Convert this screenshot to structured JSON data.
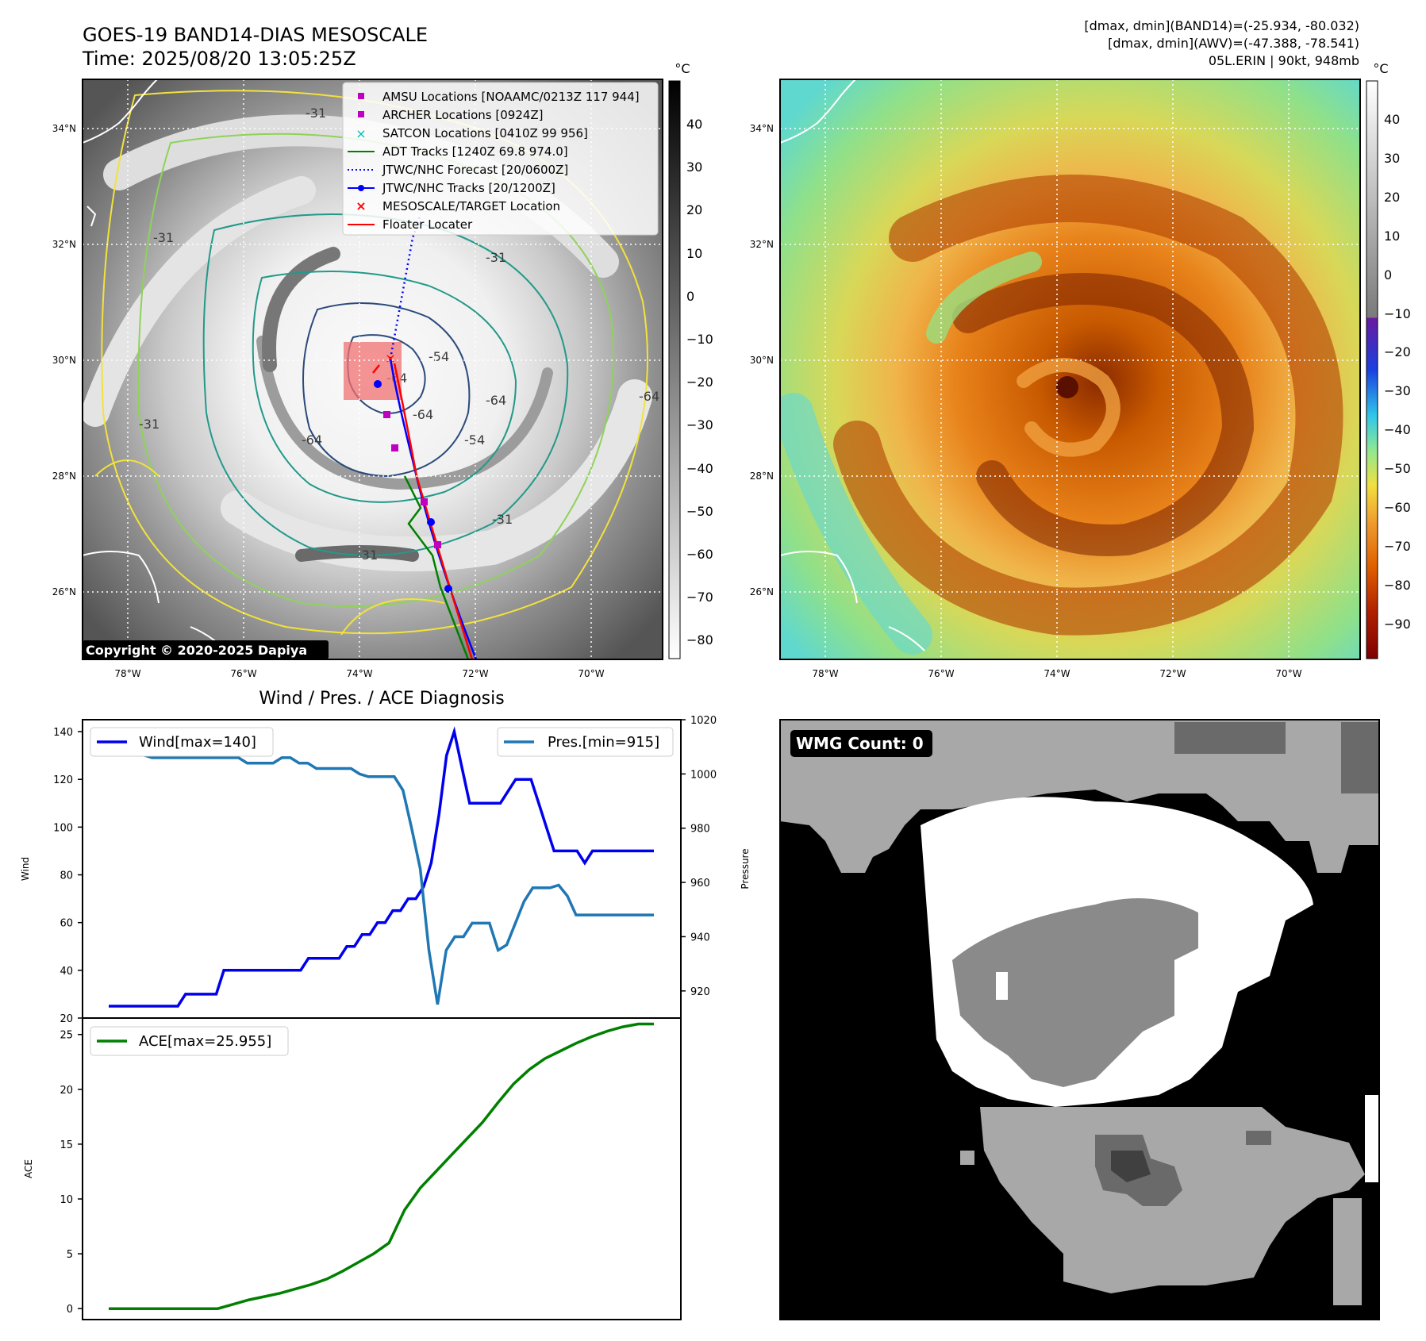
{
  "header": {
    "title": "GOES-19 BAND14-DIAS MESOSCALE",
    "time": "Time: 2025/08/20 13:05:25Z",
    "dmax_band14": "[dmax, dmin](BAND14)=(-25.934, -80.032)",
    "dmax_awv": "[dmax, dmin](AWV)=(-47.388, -78.541)",
    "storm": "05L.ERIN | 90kt, 948mb"
  },
  "map": {
    "lat_labels": [
      "34°N",
      "32°N",
      "30°N",
      "28°N",
      "26°N"
    ],
    "lon_labels": [
      "78°W",
      "76°W",
      "74°W",
      "72°W",
      "70°W"
    ],
    "copyright": "Copyright © 2020-2025 Dapiya",
    "contour_labels": [
      "-31",
      "-31",
      "-31",
      "-31",
      "-31",
      "-54",
      "-64",
      "-64",
      "-64",
      "-64",
      "-64",
      "-54",
      "-31"
    ],
    "colors": {
      "contour_yellow": "#f2e23c",
      "contour_lightgreen": "#8fd25a",
      "contour_teal": "#22998a",
      "contour_navy": "#2b4a7a",
      "mesoscale_box": "#f07070"
    },
    "legend": [
      {
        "label": "AMSU Locations [NOAAMC/0213Z 117 944]",
        "marker": "square",
        "color": "#c000c0"
      },
      {
        "label": "ARCHER Locations [0924Z]",
        "marker": "square",
        "color": "#c000c0"
      },
      {
        "label": "SATCON Locations [0410Z 99 956]",
        "marker": "x",
        "color": "#00bbbb"
      },
      {
        "label": "ADT Tracks [1240Z 69.8 974.0]",
        "marker": "line",
        "color": "#008000"
      },
      {
        "label": "JTWC/NHC Forecast [20/0600Z]",
        "marker": "dotted",
        "color": "#0000ff"
      },
      {
        "label": "JTWC/NHC Tracks [20/1200Z]",
        "marker": "line-dot",
        "color": "#0000ff"
      },
      {
        "label": "MESOSCALE/TARGET Location",
        "marker": "x",
        "color": "#ff0000"
      },
      {
        "label": "Floater Locater",
        "marker": "line",
        "color": "#ff0000"
      }
    ]
  },
  "colorbar_ir": {
    "unit": "°C",
    "ticks": [
      "40",
      "30",
      "20",
      "10",
      "0",
      "−10",
      "−20",
      "−30",
      "−40",
      "−50",
      "−60",
      "−70",
      "−80"
    ]
  },
  "colorbar_wv": {
    "unit": "°C",
    "ticks": [
      "40",
      "30",
      "20",
      "10",
      "0",
      "−10",
      "−20",
      "−30",
      "−40",
      "−50",
      "−60",
      "−70",
      "−80",
      "−90"
    ]
  },
  "diagnosis": {
    "title": "Wind / Pres. / ACE Diagnosis",
    "wind_ylabel": "Wind",
    "pres_ylabel": "Pressure",
    "ace_ylabel": "ACE",
    "wind_legend": "Wind[max=140]",
    "pres_legend": "Pres.[min=915]",
    "ace_legend": "ACE[max=25.955]",
    "colors": {
      "wind": "#0000ee",
      "pres": "#1f77b4",
      "ace": "#008000"
    }
  },
  "wmg": {
    "label": "WMG Count: 0"
  },
  "chart_data": [
    {
      "type": "line",
      "name": "wind",
      "ylim": [
        20,
        145
      ],
      "yticks": [
        20,
        40,
        60,
        80,
        100,
        120,
        140
      ],
      "x": [
        0,
        1,
        2,
        3,
        4,
        5,
        6,
        7,
        8,
        9,
        10,
        11,
        12,
        13,
        14,
        15,
        16,
        17,
        18,
        19,
        20,
        21,
        22,
        23,
        24,
        25,
        26,
        27,
        28,
        29,
        30,
        31,
        32,
        33,
        34,
        35,
        36,
        37,
        38,
        39,
        40,
        41,
        42,
        43,
        44,
        45,
        46,
        47,
        48,
        49,
        50,
        51,
        52,
        53,
        54,
        55,
        56,
        57,
        58,
        59,
        60,
        61,
        62,
        63,
        64,
        65,
        66,
        67,
        68,
        69,
        70,
        71
      ],
      "series": [
        {
          "name": "Wind[max=140]",
          "values": [
            25,
            25,
            25,
            25,
            25,
            25,
            25,
            25,
            25,
            25,
            30,
            30,
            30,
            30,
            30,
            40,
            40,
            40,
            40,
            40,
            40,
            40,
            40,
            40,
            40,
            40,
            45,
            45,
            45,
            45,
            45,
            50,
            50,
            55,
            55,
            60,
            60,
            65,
            65,
            70,
            70,
            75,
            85,
            105,
            130,
            140,
            125,
            110,
            110,
            110,
            110,
            110,
            115,
            120,
            120,
            120,
            110,
            100,
            90,
            90,
            90,
            90,
            85,
            90,
            90,
            90,
            90,
            90,
            90,
            90,
            90,
            90
          ]
        }
      ]
    },
    {
      "type": "line",
      "name": "pressure",
      "ylim": [
        910,
        1020
      ],
      "yticks": [
        920,
        940,
        960,
        980,
        1000,
        1020
      ],
      "x": [
        0,
        1,
        2,
        3,
        4,
        5,
        6,
        7,
        8,
        9,
        10,
        11,
        12,
        13,
        14,
        15,
        16,
        17,
        18,
        19,
        20,
        21,
        22,
        23,
        24,
        25,
        26,
        27,
        28,
        29,
        30,
        31,
        32,
        33,
        34,
        35,
        36,
        37,
        38,
        39,
        40,
        41,
        42,
        43,
        44,
        45,
        46,
        47,
        48,
        49,
        50,
        51,
        52,
        53,
        54,
        55,
        56,
        57,
        58,
        59,
        60,
        61,
        62,
        63
      ],
      "series": [
        {
          "name": "Pres.[min=915]",
          "values": [
            1015,
            1015,
            1015,
            1008,
            1007,
            1006,
            1006,
            1006,
            1006,
            1006,
            1006,
            1006,
            1006,
            1006,
            1006,
            1006,
            1004,
            1004,
            1004,
            1004,
            1006,
            1006,
            1004,
            1004,
            1002,
            1002,
            1002,
            1002,
            1002,
            1000,
            999,
            999,
            999,
            999,
            994,
            980,
            965,
            935,
            915,
            935,
            940,
            940,
            945,
            945,
            945,
            935,
            937,
            945,
            953,
            958,
            958,
            958,
            959,
            955,
            948,
            948,
            948,
            948,
            948,
            948,
            948,
            948,
            948,
            948
          ]
        }
      ]
    },
    {
      "type": "line",
      "name": "ace",
      "ylim": [
        -1,
        26.5
      ],
      "yticks": [
        0,
        5,
        10,
        15,
        20,
        25
      ],
      "x": [
        0,
        1,
        2,
        3,
        4,
        5,
        6,
        7,
        8,
        9,
        10,
        11,
        12,
        13,
        14,
        15,
        16,
        17,
        18,
        19,
        20,
        21,
        22,
        23,
        24,
        25,
        26,
        27,
        28,
        29,
        30,
        31,
        32,
        33,
        34,
        35
      ],
      "series": [
        {
          "name": "ACE[max=25.955]",
          "values": [
            0,
            0,
            0,
            0,
            0,
            0,
            0,
            0,
            0.4,
            0.8,
            1.1,
            1.4,
            1.8,
            2.2,
            2.7,
            3.4,
            4.2,
            5.0,
            6.0,
            9.0,
            11,
            12.5,
            14,
            15.5,
            17,
            18.8,
            20.5,
            21.8,
            22.8,
            23.5,
            24.2,
            24.8,
            25.3,
            25.7,
            25.955,
            25.955
          ]
        }
      ]
    }
  ]
}
